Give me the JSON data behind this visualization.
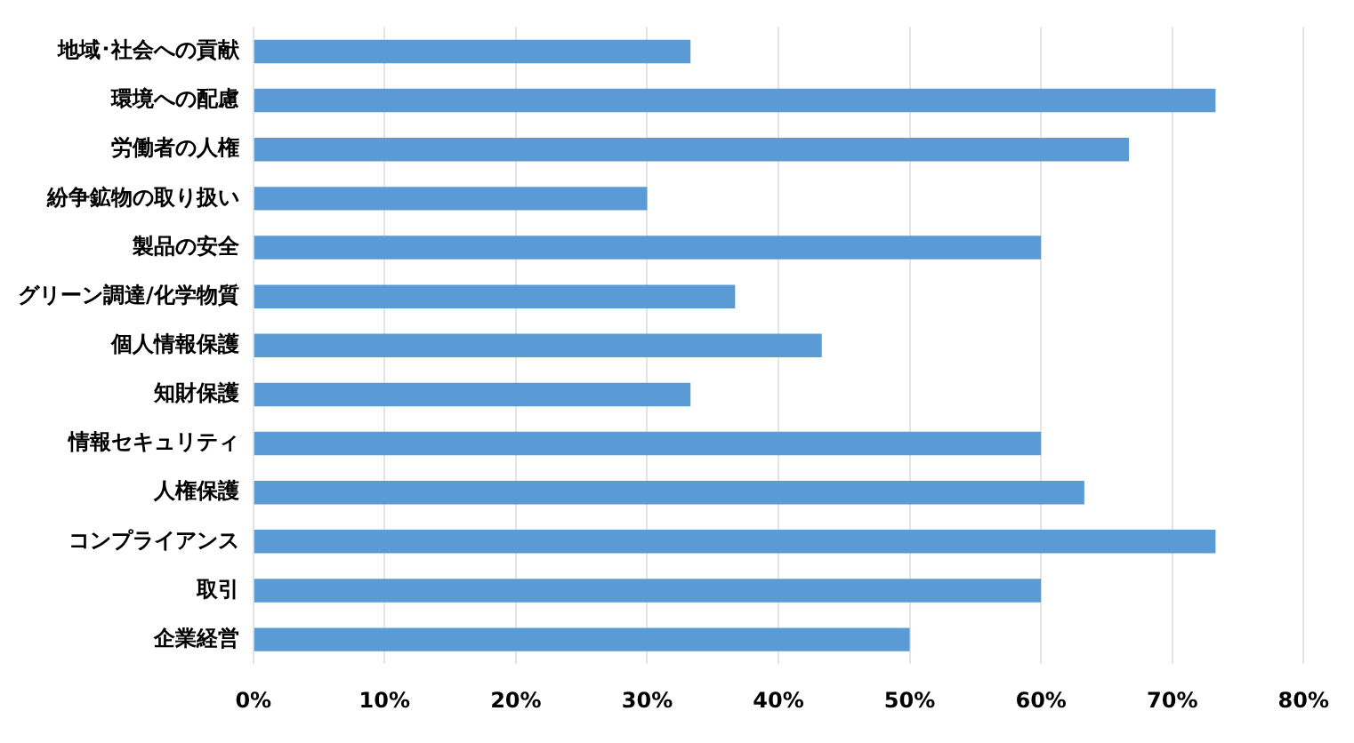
{
  "chart_data": {
    "type": "bar",
    "orientation": "horizontal",
    "categories": [
      "地域･社会への貢献",
      "環境への配慮",
      "労働者の人権",
      "紛争鉱物の取り扱い",
      "製品の安全",
      "グリーン調達/化学物質",
      "個人情報保護",
      "知財保護",
      "情報セキュリティ",
      "人権保護",
      "コンプライアンス",
      "取引",
      "企業経営"
    ],
    "values": [
      33.3,
      73.3,
      66.7,
      30,
      60,
      36.7,
      43.3,
      33.3,
      60,
      63.3,
      73.3,
      60,
      50
    ],
    "color": "#5b9bd5",
    "xlim": [
      0,
      80
    ],
    "xticks": [
      {
        "value": 0,
        "label": "0%"
      },
      {
        "value": 10,
        "label": "10%"
      },
      {
        "value": 20,
        "label": "20%"
      },
      {
        "value": 30,
        "label": "30%"
      },
      {
        "value": 40,
        "label": "40%"
      },
      {
        "value": 50,
        "label": "50%"
      },
      {
        "value": 60,
        "label": "60%"
      },
      {
        "value": 70,
        "label": "70%"
      },
      {
        "value": 80,
        "label": "80%"
      }
    ],
    "grid": "x"
  }
}
